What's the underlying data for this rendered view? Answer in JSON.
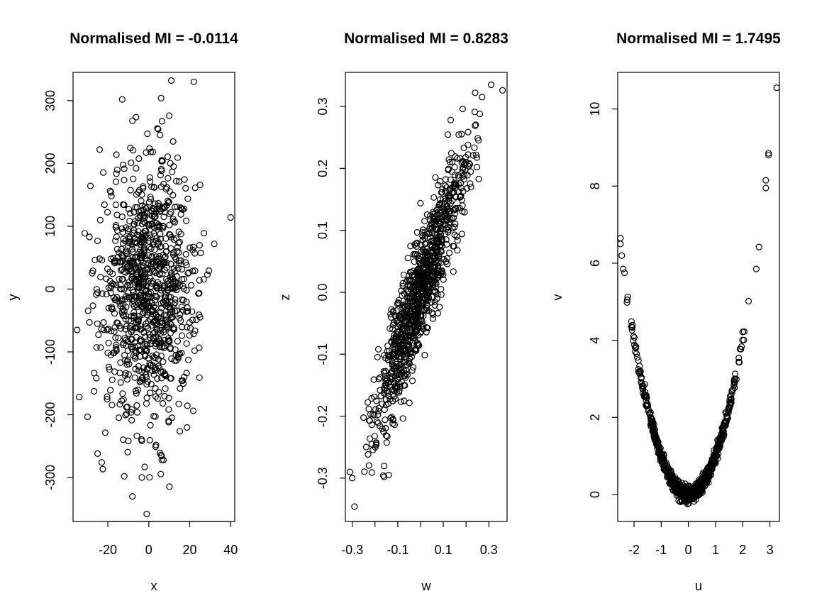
{
  "chart_data": [
    {
      "type": "scatter",
      "title": "Normalised MI = -0.0114",
      "xlabel": "x",
      "ylabel": "y",
      "xlim": [
        -37,
        42
      ],
      "ylim": [
        -370,
        345
      ],
      "xticks": [
        -20,
        0,
        20,
        40
      ],
      "yticks": [
        -300,
        -200,
        -100,
        0,
        100,
        200,
        300
      ],
      "grid": false,
      "n_points": 1000,
      "x_sd": 11.5,
      "y_sd": 100,
      "key_points": [
        {
          "x": 11,
          "y": 332
        },
        {
          "x": 22,
          "y": 330
        },
        {
          "x": -13,
          "y": 302
        },
        {
          "x": 6,
          "y": 304
        },
        {
          "x": 10,
          "y": 276
        },
        {
          "x": -8,
          "y": 268
        },
        {
          "x": 40,
          "y": 114
        },
        {
          "x": 32,
          "y": 72
        },
        {
          "x": -35,
          "y": -65
        },
        {
          "x": -34,
          "y": -172
        },
        {
          "x": -25,
          "y": -262
        },
        {
          "x": -12,
          "y": -298
        },
        {
          "x": -8,
          "y": -330
        },
        {
          "x": -1,
          "y": -358
        },
        {
          "x": -2,
          "y": -283
        },
        {
          "x": 6,
          "y": -264
        },
        {
          "x": -29,
          "y": 83
        },
        {
          "x": -24,
          "y": 222
        }
      ]
    },
    {
      "type": "scatter",
      "title": "Normalised MI = 0.8283",
      "xlabel": "w",
      "ylabel": "z",
      "xlim": [
        -0.33,
        0.38
      ],
      "ylim": [
        -0.37,
        0.355
      ],
      "xticks": [
        -0.3,
        -0.2,
        -0.1,
        0.0,
        0.1,
        0.2,
        0.3
      ],
      "xtick_labels": [
        "-0.3",
        "",
        "-0.1",
        "",
        "0.1",
        "",
        "0.3"
      ],
      "yticks": [
        -0.3,
        -0.2,
        -0.1,
        0.0,
        0.1,
        0.2,
        0.3
      ],
      "ytick_labels": [
        "-0.3",
        "-0.2",
        "-0.1",
        "0.0",
        "0.1",
        "0.2",
        "0.3"
      ],
      "grid": false,
      "n_points": 1000,
      "slope": 1.0,
      "x_sd": 0.1,
      "residual_sd": 0.045,
      "key_points": [
        {
          "x": 0.31,
          "y": 0.335
        },
        {
          "x": 0.36,
          "y": 0.326
        },
        {
          "x": 0.24,
          "y": 0.322
        },
        {
          "x": 0.27,
          "y": 0.315
        },
        {
          "x": 0.26,
          "y": 0.288
        },
        {
          "x": -0.29,
          "y": -0.346
        },
        {
          "x": -0.31,
          "y": -0.29
        },
        {
          "x": -0.3,
          "y": -0.3
        },
        {
          "x": -0.16,
          "y": -0.298
        },
        {
          "x": -0.14,
          "y": -0.295
        }
      ]
    },
    {
      "type": "scatter",
      "title": "Normalised MI = 1.7495",
      "xlabel": "u",
      "ylabel": "v",
      "xlim": [
        -2.6,
        3.35
      ],
      "ylim": [
        -0.7,
        10.95
      ],
      "xticks": [
        -2,
        -1,
        0,
        1,
        2,
        3
      ],
      "yticks": [
        0,
        2,
        4,
        6,
        8,
        10
      ],
      "grid": false,
      "n_points": 1000,
      "relation": "v = u^2 + noise",
      "key_points": [
        {
          "x": 3.25,
          "y": 10.55
        },
        {
          "x": 2.95,
          "y": 8.85
        },
        {
          "x": 2.95,
          "y": 8.8
        },
        {
          "x": 2.85,
          "y": 8.15
        },
        {
          "x": 2.85,
          "y": 7.95
        },
        {
          "x": 2.6,
          "y": 6.42
        },
        {
          "x": 2.5,
          "y": 5.85
        },
        {
          "x": -2.5,
          "y": 6.65
        },
        {
          "x": -2.5,
          "y": 6.5
        },
        {
          "x": -2.45,
          "y": 6.2
        },
        {
          "x": -2.4,
          "y": 5.85
        },
        {
          "x": -2.35,
          "y": 5.75
        }
      ]
    }
  ]
}
